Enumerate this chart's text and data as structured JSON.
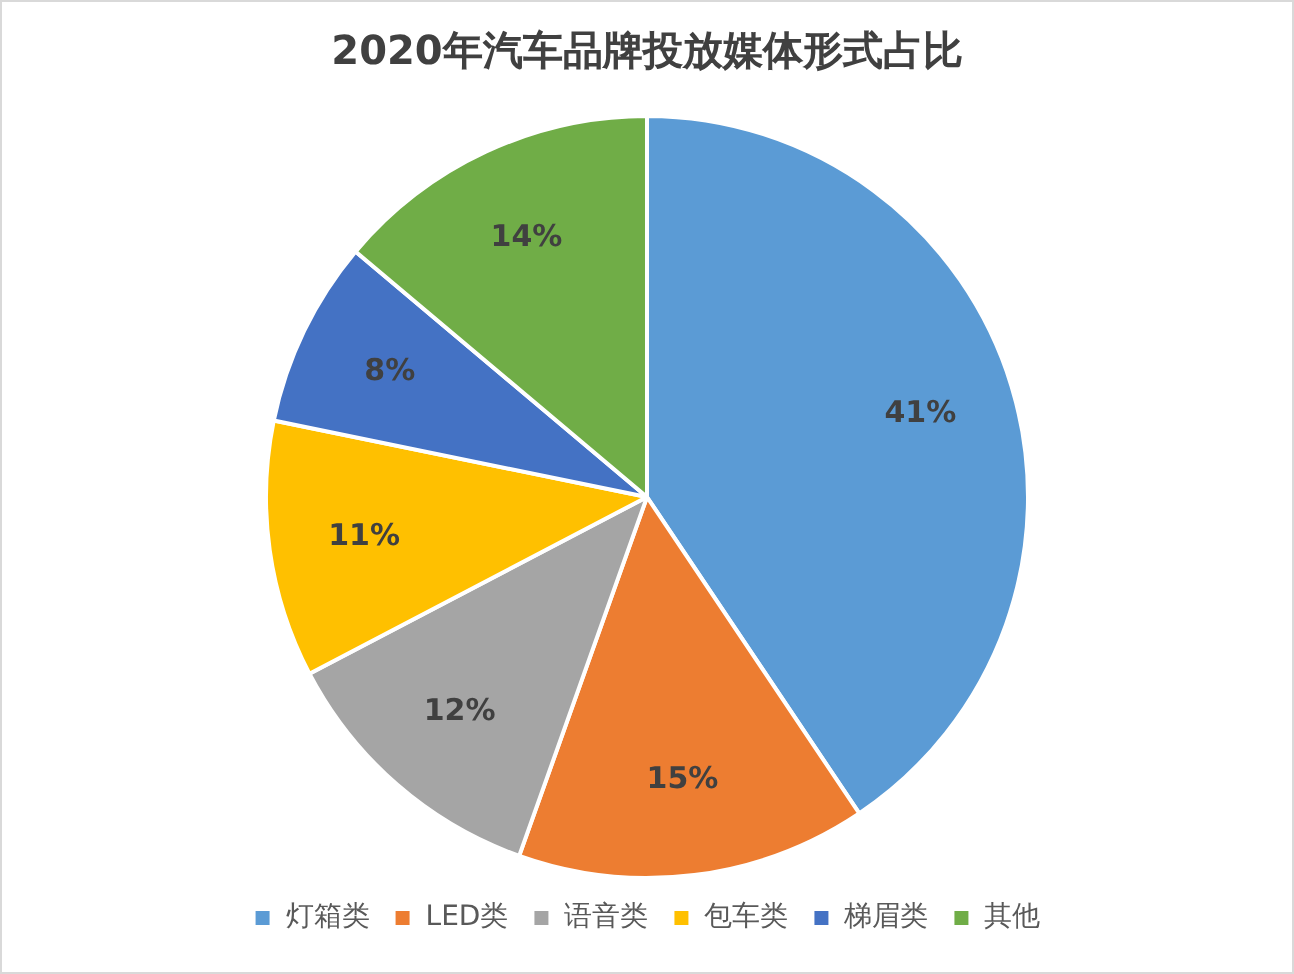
{
  "chart_data": {
    "type": "pie",
    "title": "2020年汽车品牌投放媒体形式占比",
    "categories": [
      "灯箱类",
      "LED类",
      "语音类",
      "包车类",
      "梯眉类",
      "其他"
    ],
    "values": [
      41,
      15,
      12,
      11,
      8,
      14
    ],
    "colors": [
      "#5b9bd5",
      "#ed7d31",
      "#a5a5a5",
      "#ffc000",
      "#4472c4",
      "#70ad47"
    ],
    "value_labels": [
      "41%",
      "15%",
      "12%",
      "11%",
      "8%",
      "14%"
    ],
    "legend": "bottom"
  }
}
